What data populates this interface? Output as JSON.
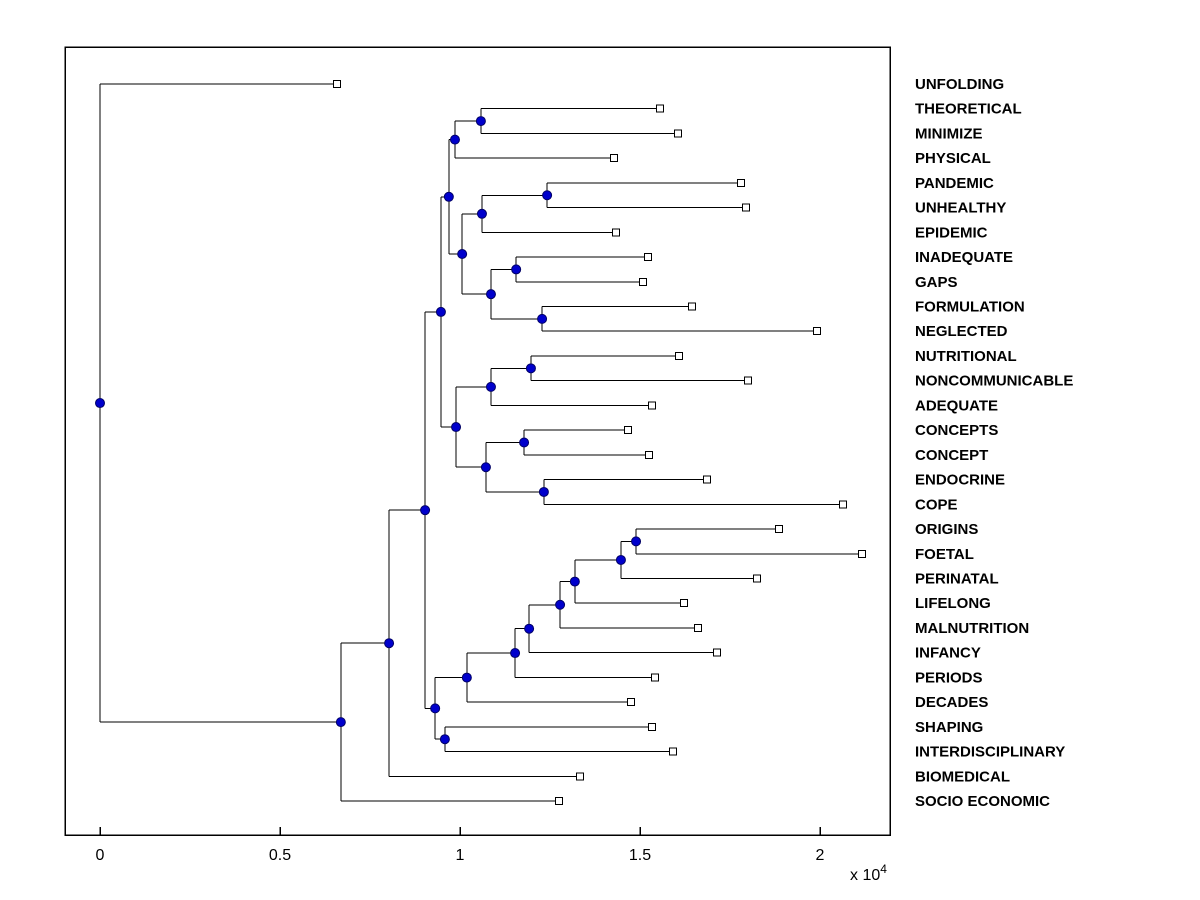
{
  "figure": {
    "background": "#FFFFFF"
  },
  "chart_data": {
    "type": "dendrogram",
    "title": "",
    "x_axis": {
      "ticks": [
        0,
        0.5,
        1,
        1.5,
        2
      ],
      "tick_labels": [
        "0",
        "0.5",
        "1",
        "1.5",
        "2"
      ],
      "multiplier_base": "x 10",
      "multiplier_exponent": "4",
      "xlim": [
        -0.097,
        2.194
      ]
    },
    "leaves": [
      {
        "label": "UNFOLDING",
        "x": 0.658
      },
      {
        "label": "THEORETICAL",
        "x": 1.556
      },
      {
        "label": "MINIMIZE",
        "x": 1.606
      },
      {
        "label": "PHYSICAL",
        "x": 1.428
      },
      {
        "label": "PANDEMIC",
        "x": 1.781
      },
      {
        "label": "UNHEALTHY",
        "x": 1.794
      },
      {
        "label": "EPIDEMIC",
        "x": 1.433
      },
      {
        "label": "INADEQUATE",
        "x": 1.522
      },
      {
        "label": "GAPS",
        "x": 1.508
      },
      {
        "label": "FORMULATION",
        "x": 1.644
      },
      {
        "label": "NEGLECTED",
        "x": 1.992
      },
      {
        "label": "NUTRITIONAL",
        "x": 1.608
      },
      {
        "label": "NONCOMMUNICABLE",
        "x": 1.8
      },
      {
        "label": "ADEQUATE",
        "x": 1.533
      },
      {
        "label": "CONCEPTS",
        "x": 1.467
      },
      {
        "label": "CONCEPT",
        "x": 1.525
      },
      {
        "label": "ENDOCRINE",
        "x": 1.686
      },
      {
        "label": "COPE",
        "x": 2.064
      },
      {
        "label": "ORIGINS",
        "x": 1.886
      },
      {
        "label": "FOETAL",
        "x": 2.117
      },
      {
        "label": "PERINATAL",
        "x": 1.825
      },
      {
        "label": "LIFELONG",
        "x": 1.622
      },
      {
        "label": "MALNUTRITION",
        "x": 1.661
      },
      {
        "label": "INFANCY",
        "x": 1.714
      },
      {
        "label": "PERIODS",
        "x": 1.542
      },
      {
        "label": "DECADES",
        "x": 1.475
      },
      {
        "label": "SHAPING",
        "x": 1.533
      },
      {
        "label": "INTERDISCIPLINARY",
        "x": 1.592
      },
      {
        "label": "BIOMEDICAL",
        "x": 1.333
      },
      {
        "label": "SOCIO ECONOMIC",
        "x": 1.275
      }
    ],
    "tree": {
      "x": 0.0,
      "children": [
        {
          "leaf": 0
        },
        {
          "x": 0.669,
          "children": [
            {
              "x": 0.803,
              "children": [
                {
                  "x": 0.903,
                  "children": [
                    {
                      "x": 0.947,
                      "children": [
                        {
                          "x": 0.969,
                          "children": [
                            {
                              "x": 0.986,
                              "children": [
                                {
                                  "x": 1.058,
                                  "children": [
                                    {
                                      "leaf": 1
                                    },
                                    {
                                      "leaf": 2
                                    }
                                  ]
                                },
                                {
                                  "leaf": 3
                                }
                              ]
                            },
                            {
                              "x": 1.006,
                              "children": [
                                {
                                  "x": 1.061,
                                  "children": [
                                    {
                                      "x": 1.242,
                                      "children": [
                                        {
                                          "leaf": 4
                                        },
                                        {
                                          "leaf": 5
                                        }
                                      ]
                                    },
                                    {
                                      "leaf": 6
                                    }
                                  ]
                                },
                                {
                                  "x": 1.086,
                                  "children": [
                                    {
                                      "x": 1.156,
                                      "children": [
                                        {
                                          "leaf": 7
                                        },
                                        {
                                          "leaf": 8
                                        }
                                      ]
                                    },
                                    {
                                      "x": 1.228,
                                      "children": [
                                        {
                                          "leaf": 9
                                        },
                                        {
                                          "leaf": 10
                                        }
                                      ]
                                    }
                                  ]
                                }
                              ]
                            }
                          ]
                        },
                        {
                          "x": 0.989,
                          "children": [
                            {
                              "x": 1.086,
                              "children": [
                                {
                                  "x": 1.197,
                                  "children": [
                                    {
                                      "leaf": 11
                                    },
                                    {
                                      "leaf": 12
                                    }
                                  ]
                                },
                                {
                                  "leaf": 13
                                }
                              ]
                            },
                            {
                              "x": 1.072,
                              "children": [
                                {
                                  "x": 1.178,
                                  "children": [
                                    {
                                      "leaf": 14
                                    },
                                    {
                                      "leaf": 15
                                    }
                                  ]
                                },
                                {
                                  "x": 1.233,
                                  "children": [
                                    {
                                      "leaf": 16
                                    },
                                    {
                                      "leaf": 17
                                    }
                                  ]
                                }
                              ]
                            }
                          ]
                        }
                      ]
                    },
                    {
                      "x": 0.931,
                      "children": [
                        {
                          "x": 1.019,
                          "children": [
                            {
                              "x": 1.153,
                              "children": [
                                {
                                  "x": 1.192,
                                  "children": [
                                    {
                                      "x": 1.278,
                                      "children": [
                                        {
                                          "x": 1.319,
                                          "children": [
                                            {
                                              "x": 1.447,
                                              "children": [
                                                {
                                                  "x": 1.489,
                                                  "children": [
                                                    {
                                                      "leaf": 18
                                                    },
                                                    {
                                                      "leaf": 19
                                                    }
                                                  ]
                                                },
                                                {
                                                  "leaf": 20
                                                }
                                              ]
                                            },
                                            {
                                              "leaf": 21
                                            }
                                          ]
                                        },
                                        {
                                          "leaf": 22
                                        }
                                      ]
                                    },
                                    {
                                      "leaf": 23
                                    }
                                  ]
                                },
                                {
                                  "leaf": 24
                                }
                              ]
                            },
                            {
                              "leaf": 25
                            }
                          ]
                        },
                        {
                          "x": 0.958,
                          "children": [
                            {
                              "leaf": 26
                            },
                            {
                              "leaf": 27
                            }
                          ]
                        }
                      ]
                    }
                  ]
                },
                {
                  "leaf": 28
                }
              ]
            },
            {
              "leaf": 29
            }
          ]
        }
      ]
    },
    "style": {
      "branch_color": "#000000",
      "internal_node_fill": "#0000CC",
      "internal_node_edge": "#000066",
      "leaf_marker_fill": "#FFFFFF",
      "leaf_marker_edge": "#000000",
      "axis_color": "#000000",
      "label_color": "#000000"
    }
  }
}
